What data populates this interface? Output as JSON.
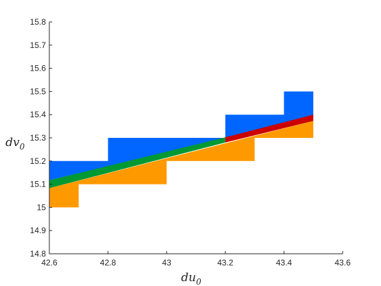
{
  "chart_data": {
    "type": "area",
    "xlabel": "du",
    "xlabel_sub": "0",
    "ylabel": "dv",
    "ylabel_sub": "0",
    "xlim": [
      42.6,
      43.6
    ],
    "ylim": [
      14.8,
      15.8
    ],
    "xticks": [
      "42.6",
      "42.8",
      "43",
      "43.2",
      "43.4",
      "43.6"
    ],
    "yticks": [
      "14.8",
      "14.9",
      "15",
      "15.1",
      "15.2",
      "15.3",
      "15.4",
      "15.5",
      "15.6",
      "15.7",
      "15.8"
    ],
    "grid": false,
    "series": [
      {
        "color": "#0066ff",
        "shape": "upper-staircase",
        "polygon": [
          [
            42.6,
            15.2
          ],
          [
            42.8,
            15.2
          ],
          [
            42.8,
            15.3
          ],
          [
            43.2,
            15.3
          ],
          [
            43.2,
            15.4
          ],
          [
            43.4,
            15.4
          ],
          [
            43.4,
            15.5
          ],
          [
            43.5,
            15.5
          ],
          [
            43.5,
            15.39
          ],
          [
            42.6,
            15.117
          ]
        ]
      },
      {
        "color": "#ff9900",
        "shape": "lower-staircase",
        "polygon": [
          [
            42.6,
            15.083
          ],
          [
            43.5,
            15.373
          ],
          [
            43.5,
            15.3
          ],
          [
            43.3,
            15.3
          ],
          [
            43.3,
            15.2
          ],
          [
            43.0,
            15.2
          ],
          [
            43.0,
            15.1
          ],
          [
            42.7,
            15.1
          ],
          [
            42.7,
            15.0
          ],
          [
            42.6,
            15.0
          ]
        ]
      },
      {
        "color": "#009933",
        "shape": "band",
        "polygon": [
          [
            42.6,
            15.117
          ],
          [
            43.2,
            15.302
          ],
          [
            43.2,
            15.28
          ],
          [
            42.6,
            15.083
          ]
        ]
      },
      {
        "color": "#cc0000",
        "shape": "band",
        "polygon": [
          [
            43.2,
            15.302
          ],
          [
            43.5,
            15.4
          ],
          [
            43.5,
            15.373
          ],
          [
            43.2,
            15.28
          ]
        ]
      }
    ]
  }
}
